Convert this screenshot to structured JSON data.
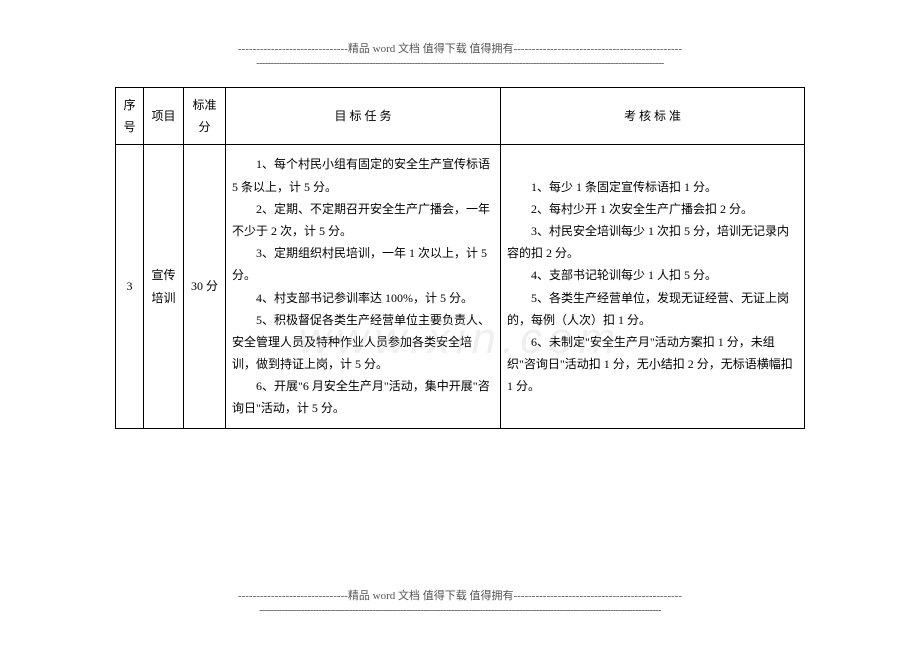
{
  "header": {
    "text": "------------------------------精品 word 文档  值得下载  值得拥有----------------------------------------------",
    "dashes": "------------------------------------------------------------------------------------------------------------------------------------------------"
  },
  "watermark": "www.xin.com",
  "table": {
    "headers": {
      "seq": "序号",
      "project": "项目",
      "standard": "标准分",
      "task": "目  标  任  务",
      "criteria": "考  核  标  准"
    },
    "row": {
      "seq": "3",
      "project": "宣传培训",
      "standard": "30 分",
      "tasks": [
        "1、每个村民小组有固定的安全生产宣传标语 5 条以上，计 5 分。",
        "2、定期、不定期召开安全生产广播会，一年不少于 2 次，计 5 分。",
        "3、定期组织村民培训，一年 1 次以上，计 5 分。",
        "4、村支部书记参训率达 100%，计 5 分。",
        "5、积极督促各类生产经营单位主要负责人、安全管理人员及特种作业人员参加各类安全培训，做到持证上岗，计 5 分。",
        "6、开展\"6 月安全生产月\"活动，集中开展\"咨询日\"活动，计 5 分。"
      ],
      "criteria": [
        "1、每少 1 条固定宣传标语扣 1 分。",
        "2、每村少开 1 次安全生产广播会扣 2 分。",
        "3、村民安全培训每少 1 次扣 5 分，培训无记录内容的扣 2 分。",
        "4、支部书记轮训每少 1 人扣 5 分。",
        "5、各类生产经营单位，发现无证经营、无证上岗的，每例（人次）扣 1 分。",
        "6、未制定\"安全生产月\"活动方案扣 1 分，未组织\"咨询日\"活动扣 1 分，无小结扣 2 分，无标语横幅扣 1 分。"
      ]
    }
  },
  "footer": {
    "text": "------------------------------精品 word 文档  值得下载  值得拥有----------------------------------------------",
    "dashes": "----------------------------------------------------------------------------------------------------------------------------------------------"
  }
}
